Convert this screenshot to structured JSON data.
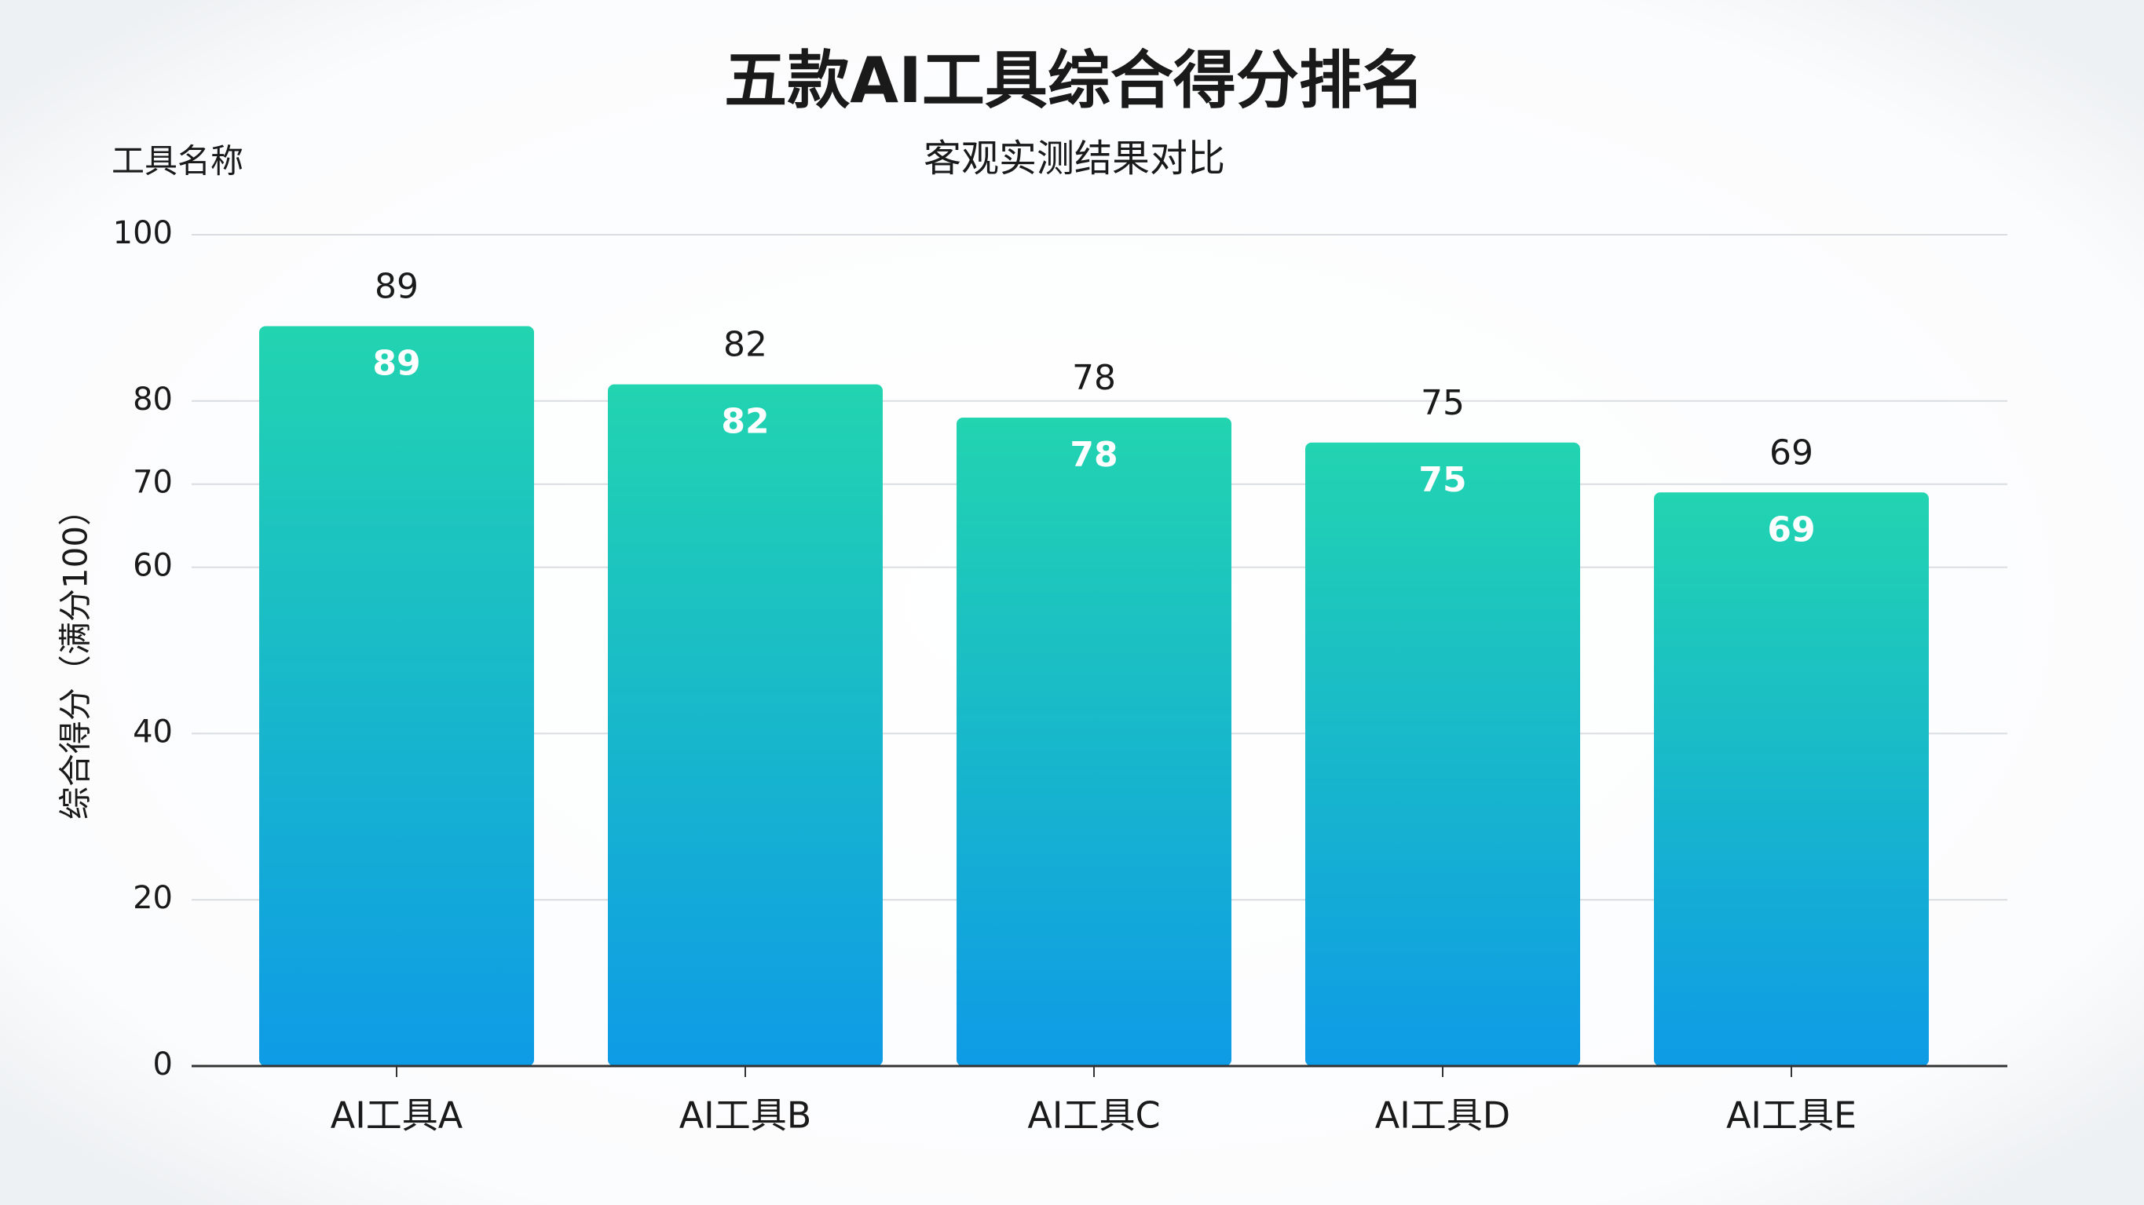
{
  "chart_data": {
    "type": "bar",
    "title": "五款AI工具综合得分排名",
    "subtitle": "客观实测结果对比",
    "x_label": "工具名称",
    "y_label": "综合得分（满分100）",
    "categories": [
      "AI工具A",
      "AI工具B",
      "AI工具C",
      "AI工具D",
      "AI工具E"
    ],
    "values": [
      89,
      82,
      78,
      75,
      69
    ],
    "color": {
      "top": "#22d4b0",
      "bottom": "#0e9be6"
    },
    "ylim": [
      0,
      100
    ],
    "yticks": [
      0,
      20,
      40,
      60,
      70,
      80,
      100
    ],
    "grid": true
  }
}
